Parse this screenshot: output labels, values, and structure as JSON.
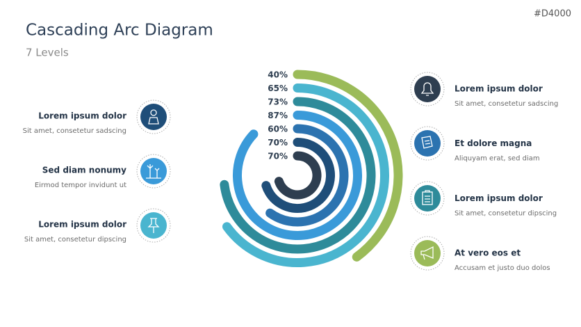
{
  "header": {
    "title": "Cascading Arc Diagram",
    "subtitle": "7 Levels",
    "code": "#D4000"
  },
  "chart_data": {
    "type": "arc",
    "values": [
      40,
      65,
      73,
      87,
      60,
      70,
      70
    ],
    "value_labels": [
      "40%",
      "65%",
      "73%",
      "87%",
      "60%",
      "70%",
      "70%"
    ],
    "colors": [
      "#9bbb59",
      "#4ab5cf",
      "#2e8b9a",
      "#3a9ad9",
      "#2c73b0",
      "#1f4e79",
      "#2e3e50"
    ]
  },
  "left_items": [
    {
      "title": "Lorem ipsum dolor",
      "text": "Sit amet, consetetur sadscing"
    },
    {
      "title": "Sed diam nonumy",
      "text": "Eirmod tempor invidunt ut"
    },
    {
      "title": "Lorem ipsum dolor",
      "text": "Sit amet, consetetur dipscing"
    }
  ],
  "right_items": [
    {
      "title": "Lorem ipsum dolor",
      "text": "Sit amet, consetetur sadscing"
    },
    {
      "title": "Et dolore magna",
      "text": "Aliquyam erat, sed diam"
    },
    {
      "title": "Lorem ipsum dolor",
      "text": "Sit amet, consetetur dipscing"
    },
    {
      "title": "At vero eos et",
      "text": "Accusam et justo duo dolos"
    }
  ]
}
